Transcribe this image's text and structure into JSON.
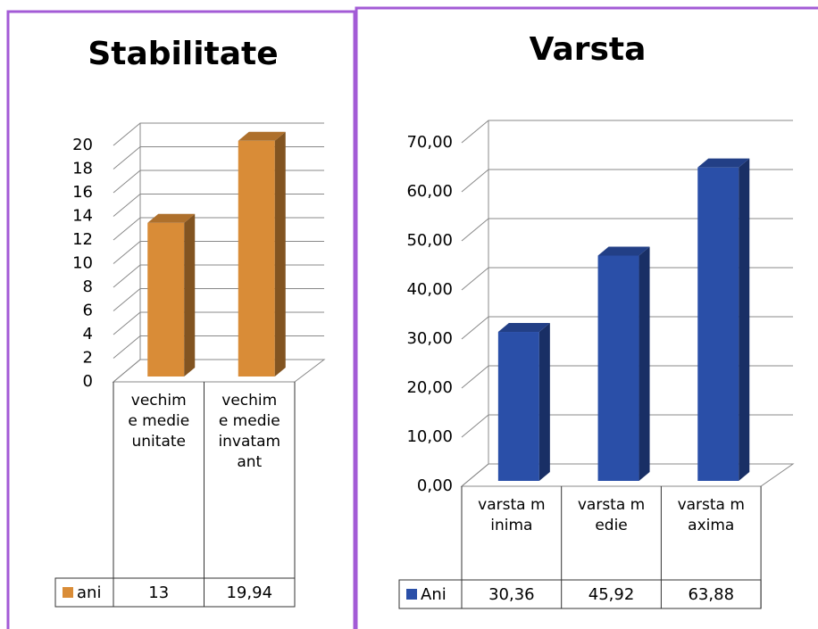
{
  "chart_data": [
    {
      "type": "bar",
      "title": "Stabilitate",
      "categories": [
        "vechime medie unitate",
        "vechime medie invatamant"
      ],
      "series": [
        {
          "name": "ani",
          "color": "#d98c37",
          "values": [
            13,
            19.94
          ],
          "value_labels": [
            "13",
            "19,94"
          ]
        }
      ],
      "ylim": [
        0,
        20
      ],
      "yticks": [
        0,
        2,
        4,
        6,
        8,
        10,
        12,
        14,
        16,
        18,
        20
      ],
      "grid": true
    },
    {
      "type": "bar",
      "title": "Varsta",
      "categories": [
        "varsta minima",
        "varsta medie",
        "varsta maxima"
      ],
      "series": [
        {
          "name": "Ani",
          "color": "#2a4fa8",
          "values": [
            30.36,
            45.92,
            63.88
          ],
          "value_labels": [
            "30,36",
            "45,92",
            "63,88"
          ]
        }
      ],
      "ylim": [
        0,
        70
      ],
      "yticks": [
        {
          "value": 0,
          "label": "0,00"
        },
        {
          "value": 10,
          "label": "10,00"
        },
        {
          "value": 20,
          "label": "20,00"
        },
        {
          "value": 30,
          "label": "30,00"
        },
        {
          "value": 40,
          "label": "40,00"
        },
        {
          "value": 50,
          "label": "50,00"
        },
        {
          "value": 60,
          "label": "60,00"
        },
        {
          "value": 70,
          "label": "70,00"
        }
      ],
      "grid": true
    }
  ]
}
